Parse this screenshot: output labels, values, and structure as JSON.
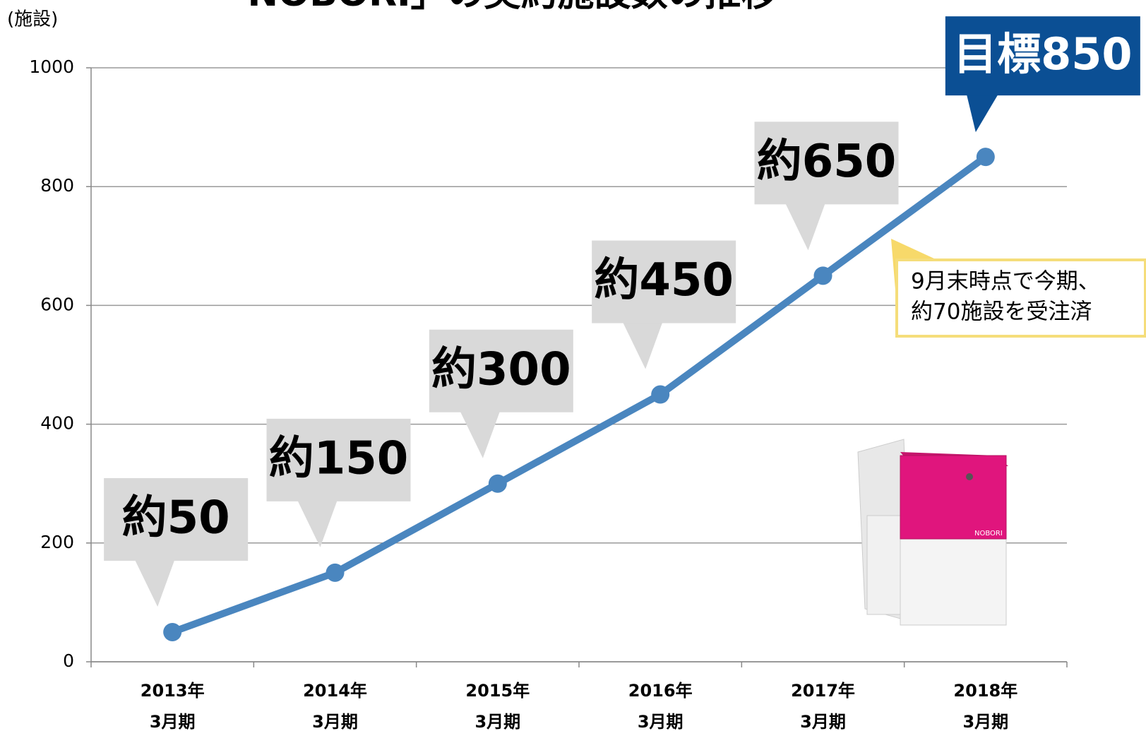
{
  "chart_data": {
    "type": "line",
    "title": "「NOBORI」の契約施設数の推移",
    "y_label": "(施設)",
    "categories": [
      [
        "2013年",
        "3月期"
      ],
      [
        "2014年",
        "3月期"
      ],
      [
        "2015年",
        "3月期"
      ],
      [
        "2016年",
        "3月期"
      ],
      [
        "2017年",
        "3月期"
      ],
      [
        "2018年",
        "3月期"
      ]
    ],
    "values": [
      50,
      150,
      300,
      450,
      650,
      850
    ],
    "value_labels": [
      "約50",
      "約150",
      "約300",
      "約450",
      "約650",
      "目標850"
    ],
    "color": "#4a86bf",
    "ylim": [
      0,
      1000
    ],
    "yticks": [
      0,
      200,
      400,
      600,
      800,
      1000
    ],
    "grid": true,
    "annotation": [
      "9月末時点で今期、",
      "約70施設を受注済"
    ]
  }
}
